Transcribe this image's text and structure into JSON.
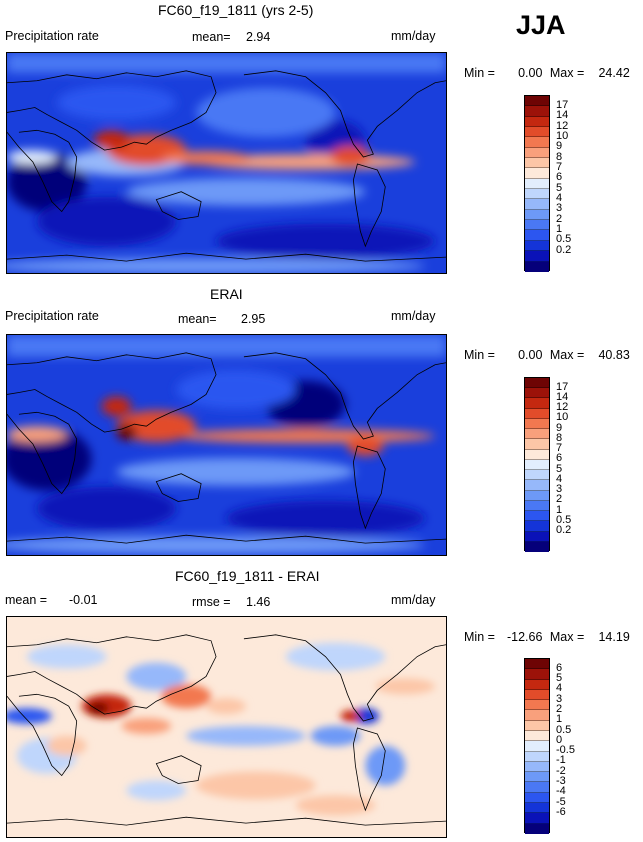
{
  "season": "JJA",
  "colors": {
    "precip": [
      "#05007a",
      "#0a12b8",
      "#1434d8",
      "#2c56f0",
      "#4a78f4",
      "#6d99f7",
      "#96b8fa",
      "#bfd6fc",
      "#e2eefd",
      "#fde9da",
      "#fcc6a7",
      "#f9a07c",
      "#f27850",
      "#e24c2a",
      "#c42810",
      "#9c1209",
      "#6e0404"
    ],
    "diff": [
      "#05007a",
      "#0a12b8",
      "#1434d8",
      "#2c56f0",
      "#4a78f4",
      "#6d99f7",
      "#96b8fa",
      "#bfd6fc",
      "#e2eefd",
      "#fde9da",
      "#fcc6a7",
      "#f9a07c",
      "#f27850",
      "#e24c2a",
      "#c42810",
      "#9c1209",
      "#6e0404"
    ]
  },
  "panels": [
    {
      "title": "FC60_f19_1811 (yrs 2-5)",
      "left_label": "Precipitation rate",
      "mid_label": "mean=",
      "mid_value": "2.94",
      "units": "mm/day",
      "min_label": "Min =",
      "min_value": "0.00",
      "max_label": "Max =",
      "max_value": "24.42",
      "colorbar": [
        "17",
        "14",
        "12",
        "10",
        "9",
        "8",
        "7",
        "6",
        "5",
        "4",
        "3",
        "2",
        "1",
        "0.5",
        "0.2"
      ]
    },
    {
      "title": "ERAI",
      "left_label": "Precipitation rate",
      "mid_label": "mean=",
      "mid_value": "2.95",
      "units": "mm/day",
      "min_label": "Min =",
      "min_value": "0.00",
      "max_label": "Max =",
      "max_value": "40.83",
      "colorbar": [
        "17",
        "14",
        "12",
        "10",
        "9",
        "8",
        "7",
        "6",
        "5",
        "4",
        "3",
        "2",
        "1",
        "0.5",
        "0.2"
      ]
    },
    {
      "title": "FC60_f19_1811 - ERAI",
      "left_label": "mean =",
      "left_value": "-0.01",
      "mid_label": "rmse =",
      "mid_value": "1.46",
      "units": "mm/day",
      "min_label": "Min =",
      "min_value": "-12.66",
      "max_label": "Max =",
      "max_value": "14.19",
      "colorbar": [
        "6",
        "5",
        "4",
        "3",
        "2",
        "1",
        "0.5",
        "0",
        "-0.5",
        "-1",
        "-2",
        "-3",
        "-4",
        "-5",
        "-6"
      ]
    }
  ],
  "chart_data": [
    {
      "type": "heatmap",
      "title": "FC60_f19_1811 (yrs 2-5)",
      "variable": "Precipitation rate",
      "units": "mm/day",
      "mean": 2.94,
      "min": 0.0,
      "max": 24.42,
      "contour_levels": [
        0.2,
        0.5,
        1,
        2,
        3,
        4,
        5,
        6,
        7,
        8,
        9,
        10,
        12,
        14,
        17
      ]
    },
    {
      "type": "heatmap",
      "title": "ERAI",
      "variable": "Precipitation rate",
      "units": "mm/day",
      "mean": 2.95,
      "min": 0.0,
      "max": 40.83,
      "contour_levels": [
        0.2,
        0.5,
        1,
        2,
        3,
        4,
        5,
        6,
        7,
        8,
        9,
        10,
        12,
        14,
        17
      ]
    },
    {
      "type": "heatmap",
      "title": "FC60_f19_1811 - ERAI",
      "units": "mm/day",
      "mean": -0.01,
      "rmse": 1.46,
      "min": -12.66,
      "max": 14.19,
      "contour_levels": [
        -6,
        -5,
        -4,
        -3,
        -2,
        -1,
        -0.5,
        0,
        0.5,
        1,
        2,
        3,
        4,
        5,
        6
      ]
    }
  ]
}
